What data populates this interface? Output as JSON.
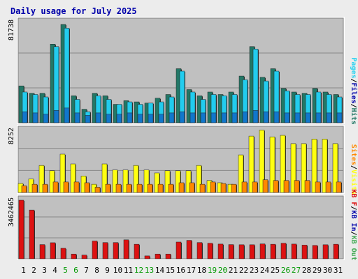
{
  "title": "Daily usage for July 2025",
  "colors": {
    "background": "#ececec",
    "title": "#0000aa",
    "plot_bg": "#c0c0c0",
    "grid": "#888888",
    "pages": "#227766",
    "files": "#2ad2f0",
    "hits": "#66ccdd",
    "visits": "#ffff11",
    "sites": "#ff8800",
    "kb_in": "#ee3333",
    "kb_out": "#44aa55",
    "kb_f": "#dd1111"
  },
  "chart_data": [
    {
      "type": "bar",
      "title": "Daily usage for July 2025",
      "ylabel_max": "81738",
      "legend": [
        {
          "text": "Pages",
          "color_key": "files"
        },
        {
          "text": "Files",
          "color_key": "title"
        },
        {
          "text": "Hits",
          "color_key": "pages"
        }
      ],
      "legend_sep": "/",
      "ylim": [
        0,
        81738
      ],
      "categories": [
        "1",
        "2",
        "3",
        "4",
        "5",
        "6",
        "7",
        "8",
        "9",
        "10",
        "11",
        "12",
        "13",
        "14",
        "15",
        "16",
        "17",
        "18",
        "19",
        "20",
        "21",
        "22",
        "23",
        "24",
        "25",
        "26",
        "27",
        "28",
        "29",
        "30",
        "31"
      ],
      "series": [
        {
          "name": "Hits",
          "values": [
            30000,
            24000,
            24000,
            64000,
            80000,
            22000,
            11000,
            24000,
            22000,
            15000,
            18000,
            17000,
            16000,
            20000,
            23000,
            44000,
            27000,
            22000,
            25000,
            23000,
            25000,
            38000,
            62000,
            37000,
            44000,
            28000,
            25000,
            24000,
            28000,
            25000,
            23000
          ]
        },
        {
          "name": "Files",
          "values": [
            25000,
            23000,
            21000,
            62000,
            77000,
            19000,
            9000,
            22000,
            19000,
            15000,
            17000,
            15000,
            16000,
            17000,
            21000,
            42000,
            25000,
            19000,
            23000,
            22000,
            23000,
            35000,
            60000,
            34000,
            42000,
            26000,
            23000,
            23000,
            25000,
            23000,
            21000
          ]
        },
        {
          "name": "Pages",
          "values": [
            9000,
            8000,
            7000,
            10000,
            12000,
            8000,
            6000,
            8000,
            7000,
            7000,
            8000,
            7000,
            7000,
            7000,
            8000,
            9000,
            8000,
            8000,
            8000,
            8000,
            8000,
            9000,
            10000,
            9000,
            9000,
            8000,
            8000,
            8000,
            8000,
            8000,
            8000
          ]
        }
      ]
    },
    {
      "type": "bar",
      "ylabel_max": "8252",
      "legend": [
        {
          "text": "Sites",
          "color_key": "sites"
        },
        {
          "text": "Visits",
          "color_key": "visits"
        }
      ],
      "legend_sep": "/",
      "ylim": [
        0,
        8252
      ],
      "series": [
        {
          "name": "Visits",
          "values": [
            1200,
            1800,
            3600,
            2900,
            5100,
            3800,
            2200,
            1100,
            3800,
            3000,
            3000,
            3600,
            3000,
            2600,
            2900,
            2900,
            2900,
            3600,
            1600,
            1300,
            1100,
            5000,
            7500,
            8300,
            7400,
            7600,
            6500,
            6500,
            7100,
            7100,
            6500
          ]
        },
        {
          "name": "Sites",
          "values": [
            900,
            1100,
            1100,
            1400,
            1400,
            1400,
            1300,
            700,
            1100,
            1100,
            1100,
            1100,
            1100,
            1100,
            1100,
            1300,
            1300,
            1100,
            1400,
            1200,
            1100,
            1400,
            1400,
            1700,
            1600,
            1600,
            1600,
            1600,
            1400,
            1400,
            1400
          ]
        }
      ]
    },
    {
      "type": "bar",
      "ylabel_max": "3462465",
      "legend": [
        {
          "text": "KB F",
          "color_key": "kb_f"
        },
        {
          "text": "KB In",
          "color_key": "title"
        },
        {
          "text": "KB Out",
          "color_key": "kb_out"
        }
      ],
      "legend_sep": "/",
      "ylim": [
        0,
        3462465
      ],
      "series": [
        {
          "name": "KB F",
          "values": [
            3462465,
            2880000,
            840000,
            950000,
            620000,
            280000,
            220000,
            1050000,
            960000,
            960000,
            1120000,
            860000,
            170000,
            280000,
            280000,
            990000,
            1090000,
            960000,
            920000,
            870000,
            840000,
            830000,
            830000,
            880000,
            860000,
            920000,
            870000,
            810000,
            790000,
            830000,
            860000
          ]
        }
      ]
    }
  ],
  "xaxis": {
    "labels": [
      "1",
      "2",
      "3",
      "4",
      "5",
      "6",
      "7",
      "8",
      "9",
      "10",
      "11",
      "12",
      "13",
      "14",
      "15",
      "16",
      "17",
      "18",
      "19",
      "20",
      "21",
      "22",
      "23",
      "24",
      "25",
      "26",
      "27",
      "28",
      "29",
      "30",
      "31"
    ],
    "weekend_days": [
      "5",
      "6",
      "12",
      "13",
      "19",
      "20",
      "26",
      "27"
    ],
    "weekday_color": "#000000",
    "weekend_color": "#009900"
  }
}
